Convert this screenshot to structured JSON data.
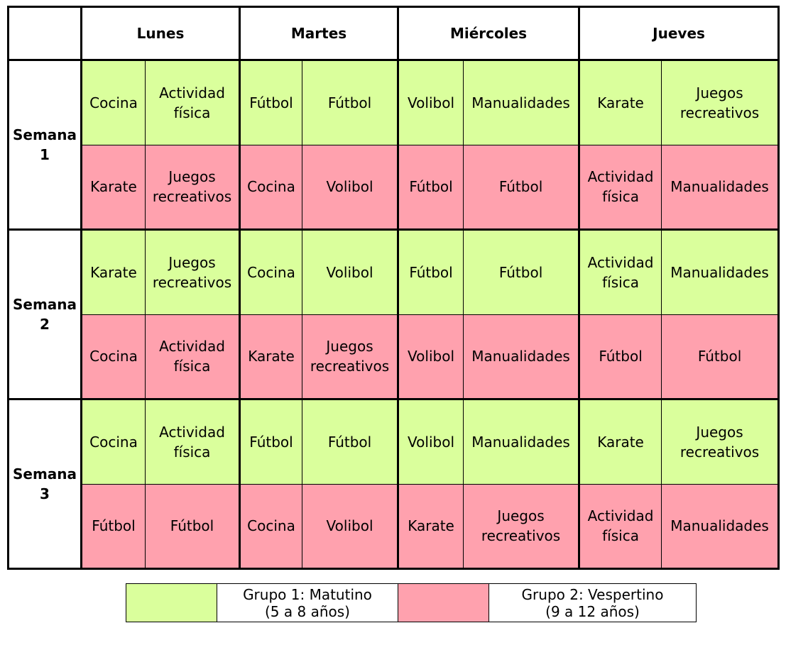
{
  "header": {
    "corner": "",
    "days": [
      "Lunes",
      "Martes",
      "Miércoles",
      "Jueves"
    ]
  },
  "weeks": [
    {
      "label": "Semana\n1",
      "rows": [
        [
          "Cocina",
          "Actividad\nfísica",
          "Fútbol",
          "Fútbol",
          "Volibol",
          "Manualidades",
          "Karate",
          "Juegos\nrecreativos"
        ],
        [
          "Karate",
          "Juegos\nrecreativos",
          "Cocina",
          "Volibol",
          "Fútbol",
          "Fútbol",
          "Actividad\nfísica",
          "Manualidades"
        ]
      ]
    },
    {
      "label": "Semana\n2",
      "rows": [
        [
          "Karate",
          "Juegos\nrecreativos",
          "Cocina",
          "Volibol",
          "Fútbol",
          "Fútbol",
          "Actividad\nfísica",
          "Manualidades"
        ],
        [
          "Cocina",
          "Actividad\nfísica",
          "Karate",
          "Juegos\nrecreativos",
          "Volibol",
          "Manualidades",
          "Fútbol",
          "Fútbol"
        ]
      ]
    },
    {
      "label": "Semana\n3",
      "rows": [
        [
          "Cocina",
          "Actividad\nfísica",
          "Fútbol",
          "Fútbol",
          "Volibol",
          "Manualidades",
          "Karate",
          "Juegos\nrecreativos"
        ],
        [
          "Fútbol",
          "Fútbol",
          "Cocina",
          "Volibol",
          "Karate",
          "Juegos\nrecreativos",
          "Actividad\nfísica",
          "Manualidades"
        ]
      ]
    }
  ],
  "legend": {
    "group1": "Grupo 1: Matutino\n(5 a 8 años)",
    "group2": "Grupo 2: Vespertino\n(9 a 12 años)"
  },
  "colors": {
    "group1": "#daff9c",
    "group2": "#ffa1ae"
  }
}
